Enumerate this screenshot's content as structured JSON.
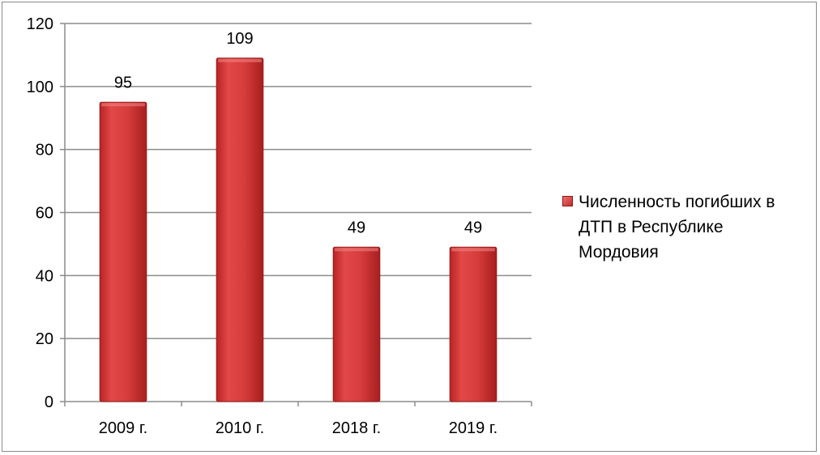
{
  "chart_data": {
    "type": "bar",
    "categories": [
      "2009 г.",
      "2010 г.",
      "2018 г.",
      "2019 г."
    ],
    "series": [
      {
        "name": "Численность погибших в ДТП в Республике Мордовия",
        "values": [
          95,
          109,
          49,
          49
        ],
        "color": "#d43a3a"
      }
    ],
    "title": "",
    "xlabel": "",
    "ylabel": "",
    "ylim": [
      0,
      120
    ],
    "yticks": [
      0,
      20,
      40,
      60,
      80,
      100,
      120
    ],
    "grid": true,
    "legend": "right",
    "data_labels": [
      "95",
      "109",
      "49",
      "49"
    ]
  }
}
